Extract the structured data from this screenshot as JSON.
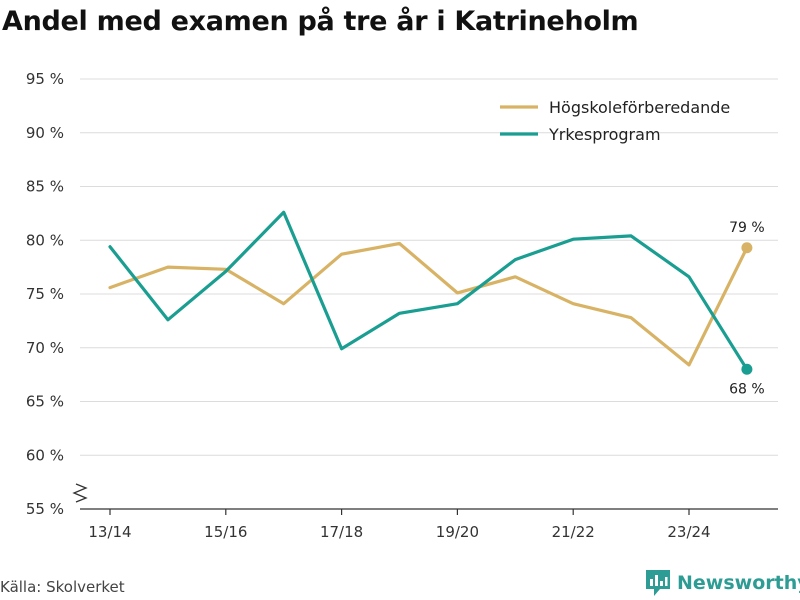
{
  "chart_data": {
    "type": "line",
    "title": "Andel med examen på tre år i Katrineholm",
    "categories": [
      "13/14",
      "14/15",
      "15/16",
      "16/17",
      "17/18",
      "18/19",
      "19/20",
      "20/21",
      "21/22",
      "22/23",
      "23/24",
      "24/25"
    ],
    "x_tick_labels": [
      "13/14",
      "15/16",
      "17/18",
      "19/20",
      "21/22",
      "23/24"
    ],
    "ylim": [
      55,
      95
    ],
    "y_ticks": [
      55,
      60,
      65,
      70,
      75,
      80,
      85,
      90,
      95
    ],
    "y_tick_suffix": " %",
    "y_axis_break": true,
    "grid": true,
    "legend_position": "top-right",
    "series": [
      {
        "name": "Högskoleförberedande",
        "color": "#d8b365",
        "values": [
          75.6,
          77.5,
          77.3,
          74.1,
          78.7,
          79.7,
          75.1,
          76.6,
          74.1,
          72.8,
          68.4,
          79.3
        ],
        "end_label": "79 %"
      },
      {
        "name": "Yrkesprogram",
        "color": "#1a9e92",
        "values": [
          79.4,
          72.6,
          77.1,
          82.6,
          69.9,
          73.2,
          74.1,
          78.2,
          80.1,
          80.4,
          76.6,
          68.0
        ],
        "end_label": "68 %"
      }
    ]
  },
  "footer": {
    "source": "Källa: Skolverket",
    "brand": "Newsworthy",
    "brand_icon": "newsworthy-logo-icon",
    "brand_color": "#2c9c94"
  }
}
